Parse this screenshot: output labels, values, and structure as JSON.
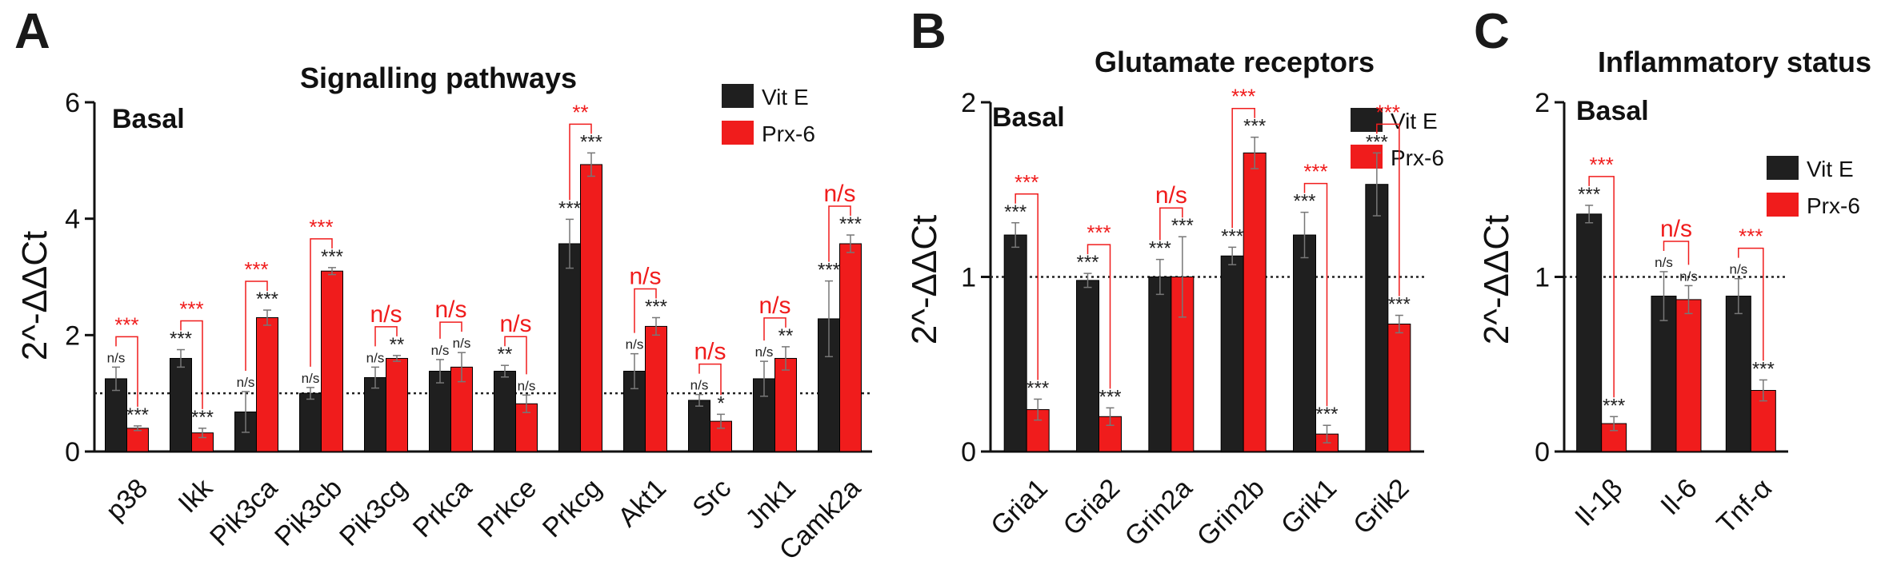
{
  "colors": {
    "vitE": "#1f1f1f",
    "prx6": "#f01c1c",
    "comparison": "#f01c1c",
    "axis": "#111111"
  },
  "legend": [
    "Vit E",
    "Prx-6"
  ],
  "chart_data": [
    {
      "type": "bar",
      "panel": "A",
      "title": "Signalling pathways",
      "annotation": "Basal",
      "xlabel": "",
      "ylabel": "2^-ΔΔCt",
      "ylim": [
        0,
        6
      ],
      "yticks": [
        0,
        2,
        4,
        6
      ],
      "reference_line": 1,
      "categories": [
        "p38",
        "Ikk",
        "Pik3ca",
        "Pik3cb",
        "Pik3cg",
        "Prkca",
        "Prkce",
        "Prkcg",
        "Akt1",
        "Src",
        "Jnk1",
        "Camk2a"
      ],
      "series": [
        {
          "name": "Vit E",
          "values": [
            1.25,
            1.6,
            0.68,
            1.0,
            1.27,
            1.38,
            1.38,
            3.57,
            1.38,
            0.88,
            1.25,
            2.28
          ],
          "errors": [
            0.2,
            0.15,
            0.35,
            0.1,
            0.18,
            0.2,
            0.1,
            0.42,
            0.3,
            0.1,
            0.3,
            0.65
          ],
          "significance": [
            "n/s",
            "***",
            "n/s",
            "n/s",
            "n/s",
            "n/s",
            "**",
            "***",
            "n/s",
            "n/s",
            "n/s",
            "***"
          ]
        },
        {
          "name": "Prx-6",
          "values": [
            0.4,
            0.32,
            2.3,
            3.1,
            1.6,
            1.45,
            0.82,
            4.93,
            2.15,
            0.52,
            1.6,
            3.57
          ],
          "errors": [
            0.04,
            0.08,
            0.13,
            0.06,
            0.05,
            0.25,
            0.15,
            0.2,
            0.15,
            0.12,
            0.2,
            0.15
          ],
          "significance": [
            "***",
            "***",
            "***",
            "***",
            "**",
            "n/s",
            "n/s",
            "***",
            "***",
            "*",
            "**",
            "***"
          ]
        }
      ],
      "comparisons": [
        "***",
        "***",
        "***",
        "***",
        "n/s",
        "n/s",
        "n/s",
        "**",
        "n/s",
        "n/s",
        "n/s",
        "n/s"
      ]
    },
    {
      "type": "bar",
      "panel": "B",
      "title": "Glutamate receptors",
      "annotation": "Basal",
      "xlabel": "",
      "ylabel": "2^-ΔΔCt",
      "ylim": [
        0,
        2
      ],
      "yticks": [
        0,
        1,
        2
      ],
      "reference_line": 1,
      "categories": [
        "Gria1",
        "Gria2",
        "Grin2a",
        "Grin2b",
        "Grik1",
        "Grik2"
      ],
      "series": [
        {
          "name": "Vit E",
          "values": [
            1.24,
            0.98,
            1.0,
            1.12,
            1.24,
            1.53
          ],
          "errors": [
            0.07,
            0.04,
            0.1,
            0.05,
            0.13,
            0.18
          ],
          "significance": [
            "***",
            "***",
            "***",
            "***",
            "***",
            "***"
          ]
        },
        {
          "name": "Prx-6",
          "values": [
            0.24,
            0.2,
            1.0,
            1.71,
            0.1,
            0.73
          ],
          "errors": [
            0.06,
            0.05,
            0.23,
            0.09,
            0.05,
            0.05
          ],
          "significance": [
            "***",
            "***",
            "***",
            "***",
            "***",
            "***"
          ]
        }
      ],
      "comparisons": [
        "***",
        "***",
        "n/s",
        "***",
        "***",
        "***"
      ]
    },
    {
      "type": "bar",
      "panel": "C",
      "title": "Inflammatory status",
      "annotation": "Basal",
      "xlabel": "",
      "ylabel": "2^-ΔΔCt",
      "ylim": [
        0,
        2
      ],
      "yticks": [
        0,
        1,
        2
      ],
      "reference_line": 1,
      "categories": [
        "Il-1β",
        "Il-6",
        "Tnf-α"
      ],
      "series": [
        {
          "name": "Vit E",
          "values": [
            1.36,
            0.89,
            0.89
          ],
          "errors": [
            0.05,
            0.14,
            0.1
          ],
          "significance": [
            "***",
            "n/s",
            "n/s"
          ]
        },
        {
          "name": "Prx-6",
          "values": [
            0.16,
            0.87,
            0.35
          ],
          "errors": [
            0.04,
            0.08,
            0.06
          ],
          "significance": [
            "***",
            "n/s",
            "***"
          ]
        }
      ],
      "comparisons": [
        "***",
        "n/s",
        "***"
      ]
    }
  ]
}
